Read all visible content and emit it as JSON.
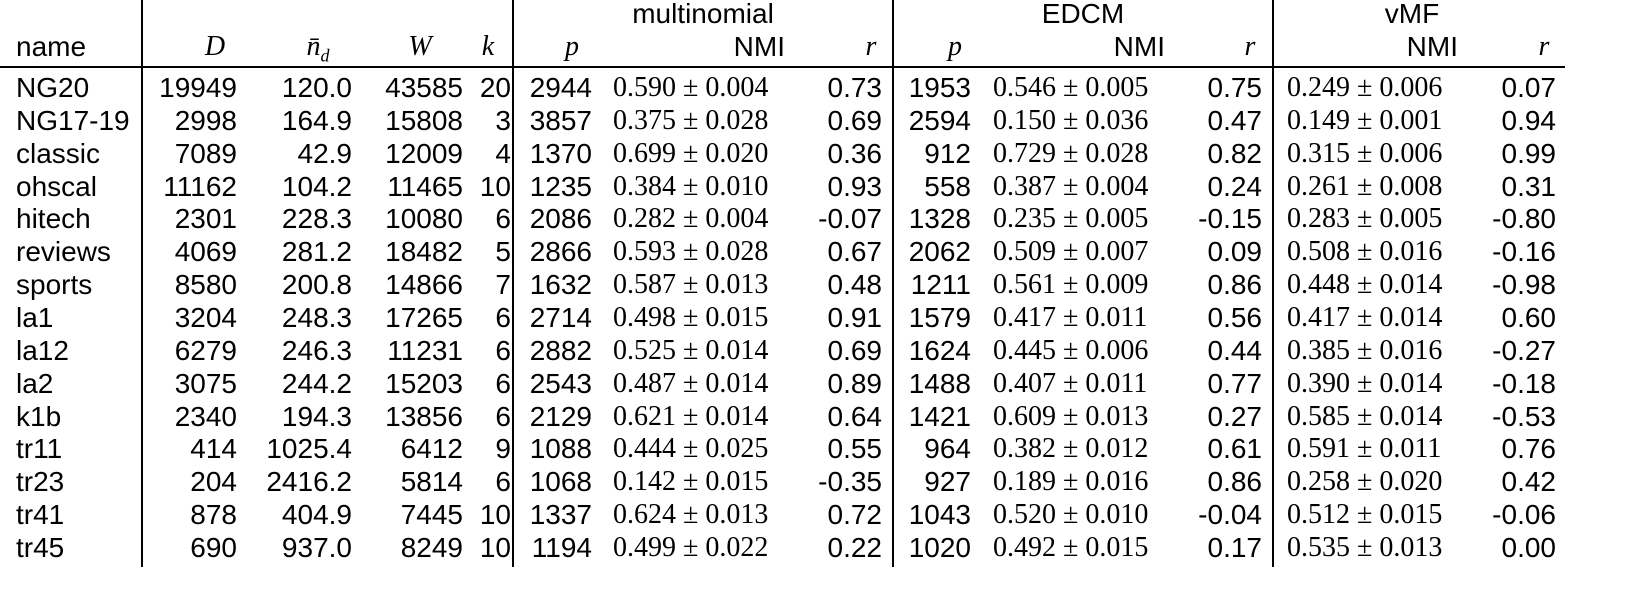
{
  "table": {
    "groups": [
      "multinomial",
      "EDCM",
      "vMF"
    ],
    "columns": [
      "name",
      "D",
      {
        "text": "n̄",
        "sub": "d"
      },
      "W",
      "k",
      "p",
      "NMI",
      "r",
      "p",
      "NMI",
      "r",
      "NMI",
      "r"
    ],
    "rows": [
      [
        "NG20",
        "19949",
        "120.0",
        "43585",
        "20",
        "2944",
        "0.590 ± 0.004",
        "0.73",
        "1953",
        "0.546 ± 0.005",
        "0.75",
        "0.249 ± 0.006",
        "0.07"
      ],
      [
        "NG17-19",
        "2998",
        "164.9",
        "15808",
        "3",
        "3857",
        "0.375 ± 0.028",
        "0.69",
        "2594",
        "0.150 ± 0.036",
        "0.47",
        "0.149 ± 0.001",
        "0.94"
      ],
      [
        "classic",
        "7089",
        "42.9",
        "12009",
        "4",
        "1370",
        "0.699 ± 0.020",
        "0.36",
        "912",
        "0.729 ± 0.028",
        "0.82",
        "0.315 ± 0.006",
        "0.99"
      ],
      [
        "ohscal",
        "11162",
        "104.2",
        "11465",
        "10",
        "1235",
        "0.384 ± 0.010",
        "0.93",
        "558",
        "0.387 ± 0.004",
        "0.24",
        "0.261 ± 0.008",
        "0.31"
      ],
      [
        "hitech",
        "2301",
        "228.3",
        "10080",
        "6",
        "2086",
        "0.282 ± 0.004",
        "-0.07",
        "1328",
        "0.235 ± 0.005",
        "-0.15",
        "0.283 ± 0.005",
        "-0.80"
      ],
      [
        "reviews",
        "4069",
        "281.2",
        "18482",
        "5",
        "2866",
        "0.593 ± 0.028",
        "0.67",
        "2062",
        "0.509 ± 0.007",
        "0.09",
        "0.508 ± 0.016",
        "-0.16"
      ],
      [
        "sports",
        "8580",
        "200.8",
        "14866",
        "7",
        "1632",
        "0.587 ± 0.013",
        "0.48",
        "1211",
        "0.561 ± 0.009",
        "0.86",
        "0.448 ± 0.014",
        "-0.98"
      ],
      [
        "la1",
        "3204",
        "248.3",
        "17265",
        "6",
        "2714",
        "0.498 ± 0.015",
        "0.91",
        "1579",
        "0.417 ± 0.011",
        "0.56",
        "0.417 ± 0.014",
        "0.60"
      ],
      [
        "la12",
        "6279",
        "246.3",
        "11231",
        "6",
        "2882",
        "0.525 ± 0.014",
        "0.69",
        "1624",
        "0.445 ± 0.006",
        "0.44",
        "0.385 ± 0.016",
        "-0.27"
      ],
      [
        "la2",
        "3075",
        "244.2",
        "15203",
        "6",
        "2543",
        "0.487 ± 0.014",
        "0.89",
        "1488",
        "0.407 ± 0.011",
        "0.77",
        "0.390 ± 0.014",
        "-0.18"
      ],
      [
        "k1b",
        "2340",
        "194.3",
        "13856",
        "6",
        "2129",
        "0.621 ± 0.014",
        "0.64",
        "1421",
        "0.609 ± 0.013",
        "0.27",
        "0.585 ± 0.014",
        "-0.53"
      ],
      [
        "tr11",
        "414",
        "1025.4",
        "6412",
        "9",
        "1088",
        "0.444 ± 0.025",
        "0.55",
        "964",
        "0.382 ± 0.012",
        "0.61",
        "0.591 ± 0.011",
        "0.76"
      ],
      [
        "tr23",
        "204",
        "2416.2",
        "5814",
        "6",
        "1068",
        "0.142 ± 0.015",
        "-0.35",
        "927",
        "0.189 ± 0.016",
        "0.86",
        "0.258 ± 0.020",
        "0.42"
      ],
      [
        "tr41",
        "878",
        "404.9",
        "7445",
        "10",
        "1337",
        "0.624 ± 0.013",
        "0.72",
        "1043",
        "0.520 ± 0.010",
        "-0.04",
        "0.512 ± 0.015",
        "-0.06"
      ],
      [
        "tr45",
        "690",
        "937.0",
        "8249",
        "10",
        "1194",
        "0.499 ± 0.022",
        "0.22",
        "1020",
        "0.492 ± 0.015",
        "0.17",
        "0.535 ± 0.013",
        "0.00"
      ]
    ]
  }
}
